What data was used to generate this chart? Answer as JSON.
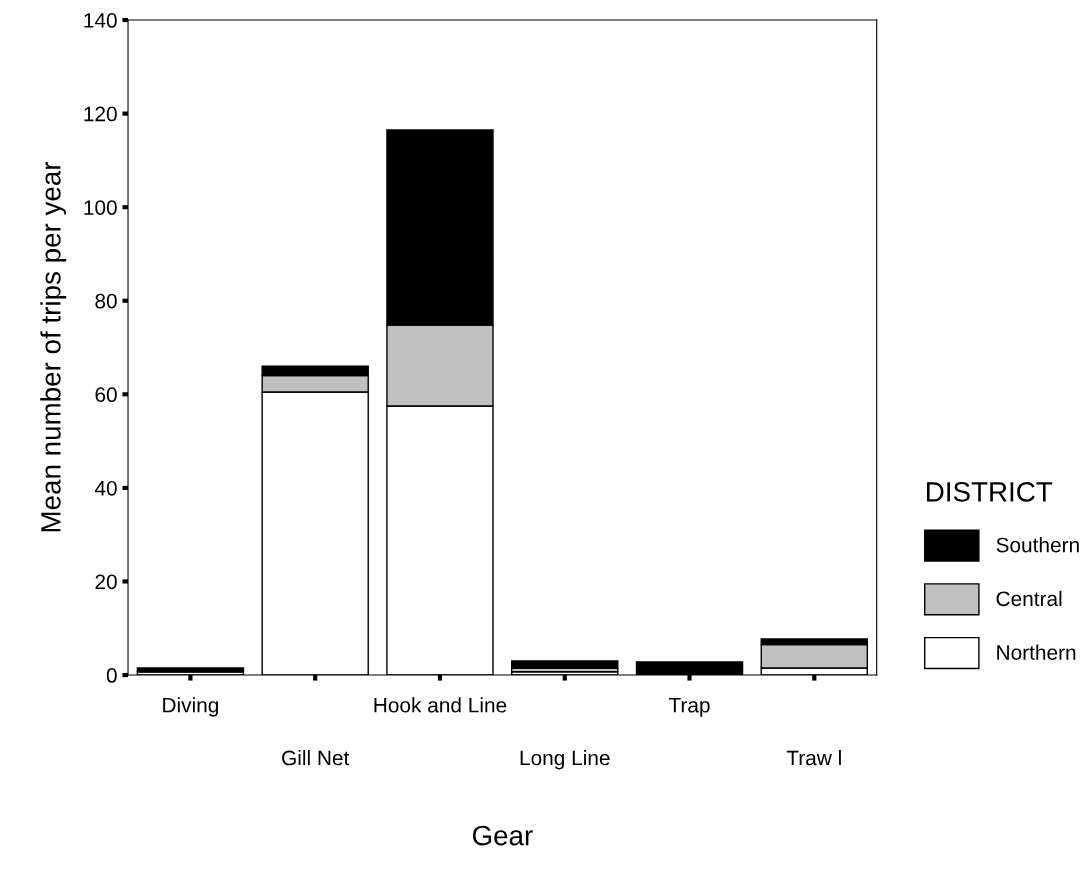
{
  "chart_data": {
    "type": "bar",
    "stacked": true,
    "xlabel": "Gear",
    "ylabel": "Mean number of trips per year",
    "legend_title": "DISTRICT",
    "legend": "right",
    "categories": [
      "Diving",
      "Gill Net",
      "Hook and Line",
      "Long Line",
      "Trap",
      "Traw l"
    ],
    "series": [
      {
        "name": "Northern",
        "color": "#ffffff",
        "values": [
          0.7,
          60.5,
          57.5,
          0.7,
          null,
          1.5
        ]
      },
      {
        "name": "Central",
        "color": "#c0c0c0",
        "values": [
          null,
          3.5,
          17.3,
          0.8,
          null,
          5
        ]
      },
      {
        "name": "Southern",
        "color": "#000000",
        "values": [
          0.8,
          2,
          41.7,
          1.5,
          2.8,
          1.2
        ]
      }
    ],
    "ylim": [
      0,
      140
    ],
    "yticks": [
      0,
      20,
      40,
      60,
      80,
      100,
      120,
      140
    ],
    "grid": false
  }
}
